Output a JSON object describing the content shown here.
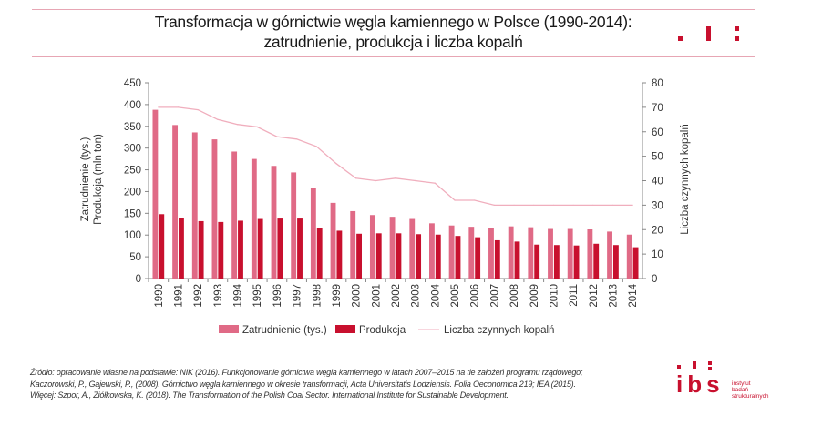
{
  "header": {
    "title_line1": "Transformacja w górnictwie węgla kamiennego w Polsce (1990-2014):",
    "title_line2": "zatrudnienie, produkcja i liczba kopalń"
  },
  "colors": {
    "accent": "#c8102e",
    "employment": "#e06a86",
    "production": "#c8102e",
    "mines_line": "#f0aebd",
    "rule": "#e7a6b4"
  },
  "chart_data": {
    "type": "bar",
    "categories": [
      "1990",
      "1991",
      "1992",
      "1993",
      "1994",
      "1995",
      "1996",
      "1997",
      "1998",
      "1999",
      "2000",
      "2001",
      "2002",
      "2003",
      "2004",
      "2005",
      "2006",
      "2007",
      "2008",
      "2009",
      "2010",
      "2011",
      "2012",
      "2013",
      "2014"
    ],
    "series": [
      {
        "name": "Zatrudnienie (tys.)",
        "type": "bar",
        "axis": "left",
        "values": [
          388,
          353,
          336,
          320,
          292,
          275,
          259,
          244,
          208,
          174,
          155,
          146,
          142,
          137,
          127,
          122,
          119,
          116,
          120,
          118,
          114,
          114,
          113,
          108,
          101
        ]
      },
      {
        "name": "Produkcja",
        "type": "bar",
        "axis": "left",
        "values": [
          148,
          140,
          132,
          130,
          133,
          137,
          138,
          138,
          116,
          110,
          103,
          104,
          104,
          102,
          101,
          98,
          95,
          88,
          85,
          78,
          77,
          76,
          80,
          77,
          72
        ]
      },
      {
        "name": "Liczba czynnych kopalń",
        "type": "line",
        "axis": "right",
        "values": [
          70,
          70,
          69,
          65,
          63,
          62,
          58,
          57,
          54,
          47,
          41,
          40,
          41,
          40,
          39,
          32,
          32,
          30,
          30,
          30,
          30,
          30,
          30,
          30,
          30
        ]
      }
    ],
    "ylabel_left": [
      "Zatrudnienie (tys.)",
      "Produkcja (mln ton)"
    ],
    "ylabel_right": "Liczba czynnych kopalń",
    "ylim_left": [
      0,
      450
    ],
    "yticks_left": [
      "0",
      "50",
      "100",
      "150",
      "200",
      "250",
      "300",
      "350",
      "400",
      "450"
    ],
    "ylim_right": [
      0,
      80
    ],
    "yticks_right": [
      "0",
      "10",
      "20",
      "30",
      "40",
      "50",
      "60",
      "70",
      "80"
    ],
    "legend_position": "bottom",
    "grid": false
  },
  "source": {
    "line1": "Źródło: opracowanie własne na podstawie: NIK (2016). Funkcjonowanie górnictwa węgla kamiennego w latach 2007–2015 na tle założeń programu rządowego;",
    "line2": "Kaczorowski, P., Gajewski, P., (2008). Górnictwo węgla kamiennego w okresie transformacji, Acta Universitatis Lodziensis. Folia Oeconomica 219; IEA (2015).",
    "line3": "Więcej: Szpor, A., Ziółkowska, K. (2018). The Transformation of the Polish Coal Sector. International Institute for Sustainable Development."
  },
  "logo": {
    "wordmark": "ibs",
    "line1": "instytut",
    "line2": "badań",
    "line3": "strukturalnych"
  }
}
